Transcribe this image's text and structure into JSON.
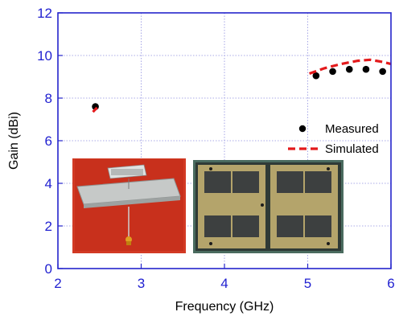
{
  "chart_data": {
    "type": "scatter",
    "xlabel": "Frequency (GHz)",
    "ylabel": "Gain (dBi)",
    "xlim": [
      2,
      6
    ],
    "ylim": [
      0,
      12
    ],
    "x_ticks": [
      "2",
      "3",
      "4",
      "5",
      "6"
    ],
    "y_ticks": [
      "0",
      "2",
      "4",
      "6",
      "8",
      "10",
      "12"
    ],
    "grid": true,
    "legend_position": "right",
    "series": [
      {
        "name": "Measured",
        "style": "markers",
        "color": "#000000",
        "points": [
          [
            2.45,
            7.6
          ],
          [
            5.1,
            9.05
          ],
          [
            5.3,
            9.25
          ],
          [
            5.5,
            9.35
          ],
          [
            5.7,
            9.35
          ],
          [
            5.9,
            9.25
          ]
        ]
      },
      {
        "name": "Simulated",
        "style": "dashed-line",
        "color": "#e31a1c",
        "segments": [
          [
            [
              2.42,
              7.35
            ],
            [
              2.47,
              7.55
            ]
          ],
          [
            [
              5.02,
              9.15
            ],
            [
              5.2,
              9.4
            ],
            [
              5.4,
              9.6
            ],
            [
              5.6,
              9.75
            ],
            [
              5.75,
              9.8
            ],
            [
              5.9,
              9.7
            ],
            [
              6.0,
              9.6
            ]
          ]
        ]
      }
    ],
    "colors": {
      "frame": "#2424cc",
      "grid": "#9090e0",
      "tick_label": "#1f1fd0"
    }
  },
  "photos": [
    {
      "name": "antenna-prototype-photo",
      "description": "antenna on ground plane with coaxial feed"
    },
    {
      "name": "patch-layout-photo",
      "description": "printed patch array layout"
    }
  ]
}
